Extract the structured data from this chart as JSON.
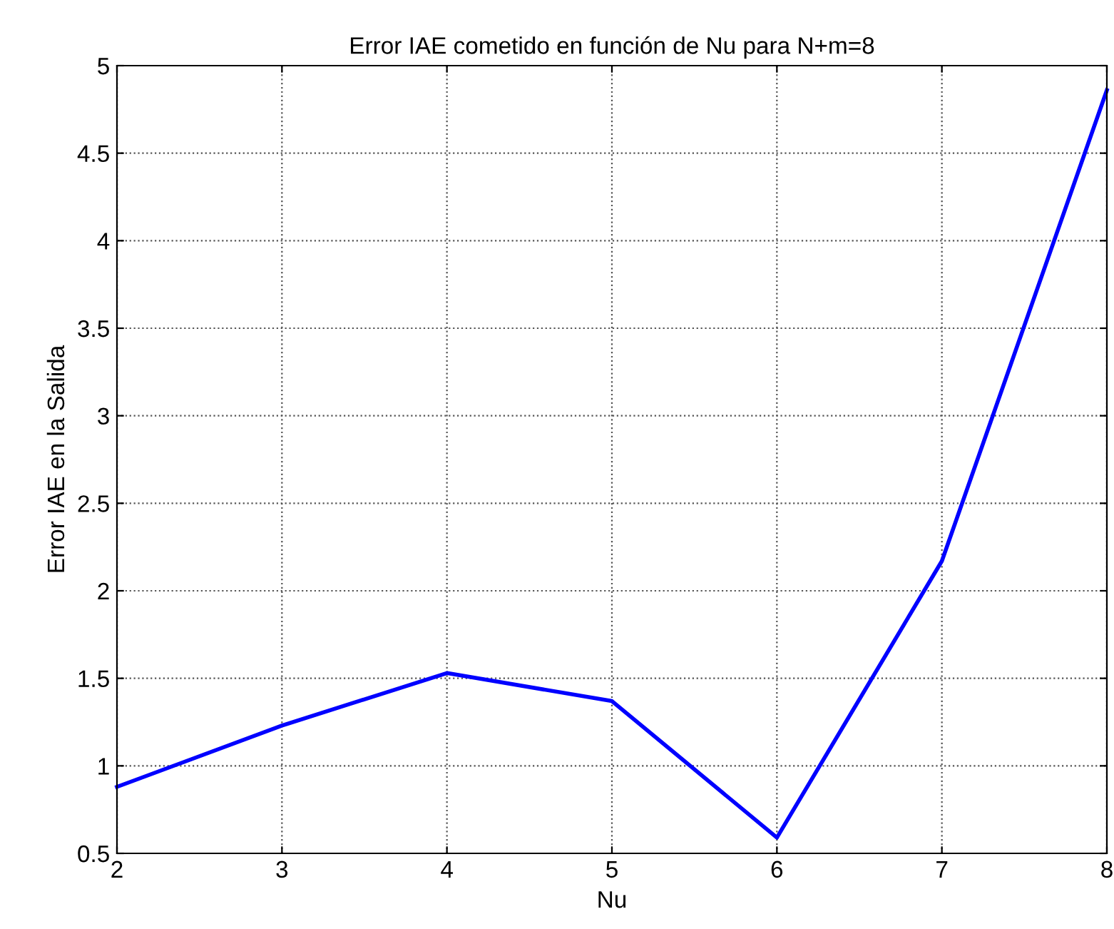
{
  "chart_data": {
    "type": "line",
    "title": "Error IAE cometido en función de Nu para N+m=8",
    "xlabel": "Nu",
    "ylabel": "Error IAE en la Salida",
    "x": [
      2,
      3,
      4,
      5,
      6,
      7,
      8
    ],
    "series": [
      {
        "color": "#0000ff",
        "values": [
          0.88,
          1.23,
          1.53,
          1.37,
          0.59,
          2.17,
          4.86
        ]
      }
    ],
    "xlim": [
      2,
      8
    ],
    "xticks": [
      2,
      3,
      4,
      5,
      6,
      7,
      8
    ],
    "ylim": [
      0.5,
      5
    ],
    "yticks": [
      0.5,
      1,
      1.5,
      2,
      2.5,
      3,
      3.5,
      4,
      4.5,
      5
    ],
    "grid": true,
    "legend": false,
    "marker": "none",
    "line_style": "solid"
  }
}
